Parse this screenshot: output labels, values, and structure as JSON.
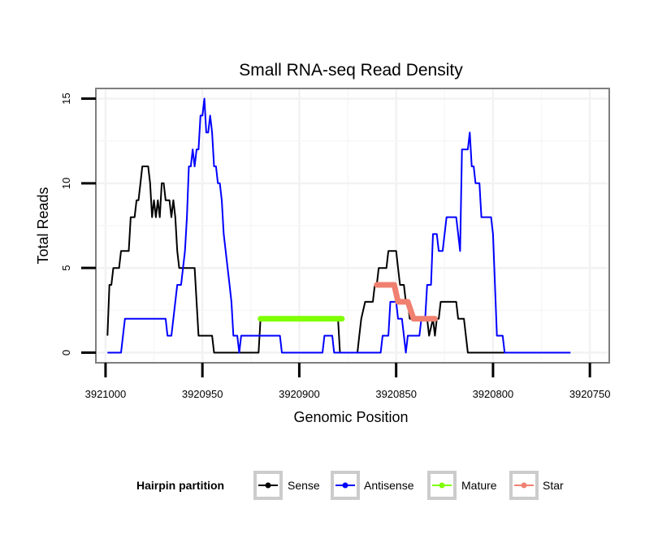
{
  "chart_data": {
    "type": "line",
    "title": "Small RNA-seq Read Density",
    "xlabel": "Genomic Position",
    "ylabel": "Total Reads",
    "xlim": [
      3921005,
      3920740
    ],
    "ylim": [
      -0.6,
      15.6
    ],
    "x_reversed": true,
    "xticks": [
      3921000,
      3920950,
      3920900,
      3920850,
      3920800,
      3920750
    ],
    "yticks": [
      0,
      5,
      10,
      15
    ],
    "grid": true,
    "legend": {
      "title": "Hairpin partition",
      "placement": "bottom",
      "entries": [
        "Sense",
        "Antisense",
        "Mature",
        "Star"
      ]
    },
    "series": [
      {
        "name": "Sense",
        "color": "#000000",
        "points": [
          [
            3920999,
            1
          ],
          [
            3920998,
            4
          ],
          [
            3920997,
            4
          ],
          [
            3920996,
            5
          ],
          [
            3920993,
            5
          ],
          [
            3920992,
            6
          ],
          [
            3920988,
            6
          ],
          [
            3920987,
            8
          ],
          [
            3920985,
            8
          ],
          [
            3920984,
            9
          ],
          [
            3920983,
            9
          ],
          [
            3920982,
            10
          ],
          [
            3920981,
            11
          ],
          [
            3920978,
            11
          ],
          [
            3920977,
            10
          ],
          [
            3920976,
            8
          ],
          [
            3920975,
            9
          ],
          [
            3920974,
            8
          ],
          [
            3920973,
            9
          ],
          [
            3920972,
            8
          ],
          [
            3920971,
            10
          ],
          [
            3920970,
            10
          ],
          [
            3920969,
            9
          ],
          [
            3920967,
            9
          ],
          [
            3920966,
            8
          ],
          [
            3920965,
            9
          ],
          [
            3920964,
            8
          ],
          [
            3920963,
            6
          ],
          [
            3920962,
            5
          ],
          [
            3920961,
            5
          ],
          [
            3920954,
            5
          ],
          [
            3920953,
            3
          ],
          [
            3920952,
            1
          ],
          [
            3920945,
            1
          ],
          [
            3920944,
            0
          ],
          [
            3920921,
            0
          ],
          [
            3920920,
            2
          ],
          [
            3920880,
            2
          ],
          [
            3920879,
            0
          ],
          [
            3920870,
            0
          ],
          [
            3920869,
            1
          ],
          [
            3920868,
            2
          ],
          [
            3920866,
            3
          ],
          [
            3920862,
            3
          ],
          [
            3920861,
            4
          ],
          [
            3920860,
            4
          ],
          [
            3920859,
            5
          ],
          [
            3920855,
            5
          ],
          [
            3920854,
            6
          ],
          [
            3920850,
            6
          ],
          [
            3920849,
            5
          ],
          [
            3920848,
            4
          ],
          [
            3920846,
            4
          ],
          [
            3920845,
            3
          ],
          [
            3920844,
            3
          ],
          [
            3920843,
            2
          ],
          [
            3920834,
            2
          ],
          [
            3920833,
            1
          ],
          [
            3920831,
            2
          ],
          [
            3920830,
            1
          ],
          [
            3920829,
            2
          ],
          [
            3920828,
            2
          ],
          [
            3920827,
            3
          ],
          [
            3920819,
            3
          ],
          [
            3920818,
            2
          ],
          [
            3920815,
            2
          ],
          [
            3920814,
            1
          ],
          [
            3920813,
            0
          ],
          [
            3920787,
            0
          ]
        ]
      },
      {
        "name": "Antisense",
        "color": "#0000ff",
        "points": [
          [
            3920999,
            0
          ],
          [
            3920992,
            0
          ],
          [
            3920991,
            1
          ],
          [
            3920990,
            2
          ],
          [
            3920969,
            2
          ],
          [
            3920968,
            1
          ],
          [
            3920966,
            1
          ],
          [
            3920965,
            2
          ],
          [
            3920964,
            3
          ],
          [
            3920963,
            4
          ],
          [
            3920961,
            4
          ],
          [
            3920960,
            5
          ],
          [
            3920959,
            6
          ],
          [
            3920958,
            8
          ],
          [
            3920957,
            11
          ],
          [
            3920956,
            11
          ],
          [
            3920955,
            12
          ],
          [
            3920954,
            11
          ],
          [
            3920953,
            12
          ],
          [
            3920952,
            12
          ],
          [
            3920951,
            14
          ],
          [
            3920950,
            14
          ],
          [
            3920949,
            15
          ],
          [
            3920948,
            13
          ],
          [
            3920947,
            13
          ],
          [
            3920946,
            14
          ],
          [
            3920945,
            13
          ],
          [
            3920944,
            11
          ],
          [
            3920943,
            11
          ],
          [
            3920942,
            10
          ],
          [
            3920941,
            10
          ],
          [
            3920940,
            9
          ],
          [
            3920939,
            7
          ],
          [
            3920938,
            6
          ],
          [
            3920937,
            5
          ],
          [
            3920936,
            4
          ],
          [
            3920935,
            3
          ],
          [
            3920934,
            1
          ],
          [
            3920932,
            1
          ],
          [
            3920931,
            0
          ],
          [
            3920930,
            1
          ],
          [
            3920910,
            1
          ],
          [
            3920909,
            0
          ],
          [
            3920888,
            0
          ],
          [
            3920887,
            1
          ],
          [
            3920883,
            1
          ],
          [
            3920882,
            0
          ],
          [
            3920858,
            0
          ],
          [
            3920857,
            1
          ],
          [
            3920854,
            1
          ],
          [
            3920853,
            3
          ],
          [
            3920850,
            3
          ],
          [
            3920849,
            2
          ],
          [
            3920847,
            2
          ],
          [
            3920846,
            1
          ],
          [
            3920845,
            0
          ],
          [
            3920844,
            1
          ],
          [
            3920838,
            1
          ],
          [
            3920837,
            2
          ],
          [
            3920835,
            2
          ],
          [
            3920834,
            4
          ],
          [
            3920832,
            4
          ],
          [
            3920831,
            7
          ],
          [
            3920829,
            7
          ],
          [
            3920828,
            6
          ],
          [
            3920826,
            6
          ],
          [
            3920825,
            7
          ],
          [
            3920824,
            8
          ],
          [
            3920819,
            8
          ],
          [
            3920818,
            7
          ],
          [
            3920817,
            6
          ],
          [
            3920816,
            12
          ],
          [
            3920813,
            12
          ],
          [
            3920812,
            13
          ],
          [
            3920811,
            11
          ],
          [
            3920810,
            11
          ],
          [
            3920809,
            10
          ],
          [
            3920807,
            10
          ],
          [
            3920806,
            8
          ],
          [
            3920801,
            8
          ],
          [
            3920800,
            7
          ],
          [
            3920799,
            4
          ],
          [
            3920798,
            1
          ],
          [
            3920795,
            1
          ],
          [
            3920794,
            0
          ],
          [
            3920760,
            0
          ]
        ]
      },
      {
        "name": "Mature",
        "color": "#80ff00",
        "points": [
          [
            3920920,
            2
          ],
          [
            3920878,
            2
          ]
        ]
      },
      {
        "name": "Star",
        "color": "#f08070",
        "points": [
          [
            3920860,
            4
          ],
          [
            3920851,
            4
          ],
          [
            3920849,
            3
          ],
          [
            3920844,
            3
          ],
          [
            3920841,
            2
          ],
          [
            3920830,
            2
          ]
        ]
      }
    ]
  }
}
